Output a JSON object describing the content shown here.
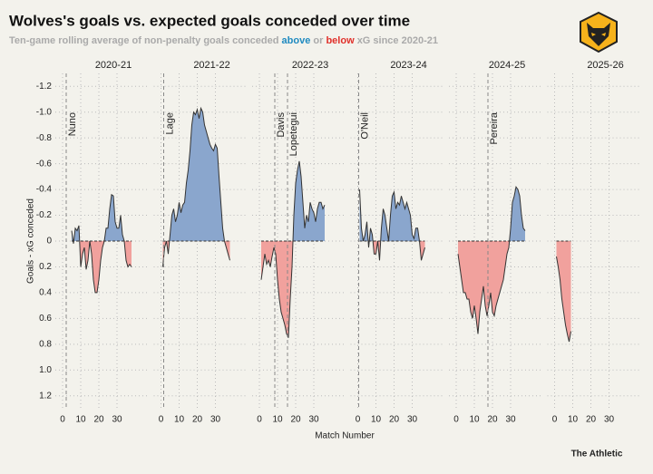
{
  "chart_data": {
    "type": "area",
    "title": "Wolves's goals vs. expected goals conceded over time",
    "subtitle": [
      "Ten-game rolling average of non-penalty goals conceded",
      "above",
      "or",
      "below",
      "xG since 2020-21"
    ],
    "y_label": "Goals - xG conceded",
    "x_label": "Match Number",
    "source": "The Athletic",
    "ylim": [
      -1.3,
      1.3
    ],
    "y_inverted": true,
    "yticks": [
      -1.2,
      {
        "value": -1,
        "label": "-1.0"
      },
      -0.8,
      -0.6,
      -0.4,
      -0.2,
      0,
      0.2,
      0.4,
      0.6,
      0.8,
      {
        "value": 1,
        "label": "1.0"
      },
      1.2
    ],
    "xlim": [
      -4,
      50
    ],
    "xticks": [
      0,
      10,
      20,
      30
    ],
    "grid": true,
    "above_color": "#8aa6cd",
    "below_color": "#f1a19d",
    "line_color": "#333333",
    "panels": [
      {
        "label": "2020-21",
        "managers": [
          {
            "name": "Nuno",
            "x": 2
          }
        ],
        "x": [
          5,
          6,
          7,
          8,
          9,
          10,
          11,
          12,
          13,
          14,
          15,
          16,
          17,
          18,
          19,
          20,
          21,
          22,
          23,
          24,
          25,
          26,
          27,
          28,
          29,
          30,
          31,
          32,
          33,
          34,
          35,
          36,
          37,
          38
        ],
        "values": [
          -0.08,
          0.02,
          -0.1,
          -0.08,
          -0.12,
          0.2,
          0.1,
          0.05,
          0.22,
          0.15,
          0.0,
          0.1,
          0.3,
          0.4,
          0.4,
          0.3,
          0.15,
          0.05,
          0.0,
          -0.1,
          -0.1,
          -0.25,
          -0.36,
          -0.35,
          -0.15,
          -0.1,
          -0.1,
          -0.2,
          -0.05,
          0.0,
          0.15,
          0.2,
          0.18,
          0.2
        ]
      },
      {
        "label": "2021-22",
        "managers": [
          {
            "name": "Lage",
            "x": 1.5
          }
        ],
        "x": [
          1,
          2,
          3,
          4,
          5,
          6,
          7,
          8,
          9,
          10,
          11,
          12,
          13,
          14,
          15,
          16,
          17,
          18,
          19,
          20,
          21,
          22,
          23,
          24,
          25,
          26,
          27,
          28,
          29,
          30,
          31,
          32,
          33,
          34,
          35,
          36,
          37,
          38
        ],
        "values": [
          0.2,
          0.05,
          0.0,
          0.1,
          -0.05,
          -0.2,
          -0.25,
          -0.15,
          -0.2,
          -0.3,
          -0.22,
          -0.28,
          -0.3,
          -0.45,
          -0.55,
          -0.7,
          -0.9,
          -1.0,
          -0.98,
          -1.02,
          -0.95,
          -1.03,
          -1.0,
          -0.9,
          -0.85,
          -0.8,
          -0.75,
          -0.72,
          -0.7,
          -0.75,
          -0.72,
          -0.5,
          -0.3,
          -0.1,
          0.0,
          0.05,
          0.1,
          0.15
        ]
      },
      {
        "label": "2022-23",
        "managers": [
          {
            "name": "Davis",
            "x": 8.5
          },
          {
            "name": "Lopetegui",
            "x": 15.5
          }
        ],
        "x": [
          1,
          2,
          3,
          4,
          5,
          6,
          7,
          8,
          9,
          10,
          11,
          12,
          13,
          14,
          15,
          16,
          17,
          18,
          19,
          20,
          21,
          22,
          23,
          24,
          25,
          26,
          27,
          28,
          29,
          30,
          31,
          32,
          33,
          34,
          35,
          36
        ],
        "values": [
          0.3,
          0.2,
          0.1,
          0.18,
          0.15,
          0.2,
          0.12,
          0.05,
          0.1,
          0.3,
          0.45,
          0.55,
          0.6,
          0.65,
          0.72,
          0.75,
          0.45,
          0.2,
          -0.2,
          -0.45,
          -0.55,
          -0.62,
          -0.5,
          -0.3,
          -0.1,
          -0.2,
          -0.15,
          -0.3,
          -0.25,
          -0.22,
          -0.15,
          -0.25,
          -0.3,
          -0.3,
          -0.25,
          -0.28
        ]
      },
      {
        "label": "2023-24",
        "managers": [
          {
            "name": "O'Neil",
            "x": 0.5
          }
        ],
        "x": [
          1,
          2,
          3,
          4,
          5,
          6,
          7,
          8,
          9,
          10,
          11,
          12,
          13,
          14,
          15,
          16,
          17,
          18,
          19,
          20,
          21,
          22,
          23,
          24,
          25,
          26,
          27,
          28,
          29,
          30,
          31,
          32,
          33,
          34,
          35,
          36,
          37
        ],
        "values": [
          -0.4,
          -0.1,
          0.0,
          -0.05,
          -0.15,
          0.05,
          -0.1,
          -0.05,
          0.1,
          0.1,
          0.0,
          0.15,
          -0.1,
          -0.25,
          -0.2,
          -0.1,
          0.0,
          -0.2,
          -0.35,
          -0.38,
          -0.25,
          -0.3,
          -0.28,
          -0.35,
          -0.3,
          -0.25,
          -0.3,
          -0.25,
          -0.2,
          -0.05,
          -0.02,
          -0.1,
          -0.1,
          0.0,
          0.15,
          0.1,
          0.05
        ]
      },
      {
        "label": "2024-25",
        "managers": [
          {
            "name": "Pereira",
            "x": 17.5
          }
        ],
        "x": [
          1,
          2,
          3,
          4,
          5,
          6,
          7,
          8,
          9,
          10,
          11,
          12,
          13,
          14,
          15,
          16,
          17,
          18,
          19,
          20,
          21,
          22,
          23,
          24,
          25,
          26,
          27,
          28,
          29,
          30,
          31,
          32,
          33,
          34,
          35,
          36,
          37,
          38
        ],
        "values": [
          0.1,
          0.2,
          0.3,
          0.4,
          0.4,
          0.45,
          0.45,
          0.55,
          0.6,
          0.5,
          0.6,
          0.72,
          0.55,
          0.45,
          0.35,
          0.5,
          0.58,
          0.5,
          0.4,
          0.55,
          0.58,
          0.5,
          0.45,
          0.4,
          0.35,
          0.3,
          0.2,
          0.1,
          0.05,
          -0.1,
          -0.3,
          -0.35,
          -0.42,
          -0.4,
          -0.35,
          -0.2,
          -0.1,
          -0.08
        ]
      },
      {
        "label": "2025-26",
        "managers": [],
        "x": [
          1,
          2,
          3,
          4,
          5,
          6,
          7,
          8,
          9
        ],
        "values": [
          0.12,
          0.2,
          0.3,
          0.45,
          0.55,
          0.65,
          0.72,
          0.78,
          0.7
        ]
      }
    ]
  }
}
